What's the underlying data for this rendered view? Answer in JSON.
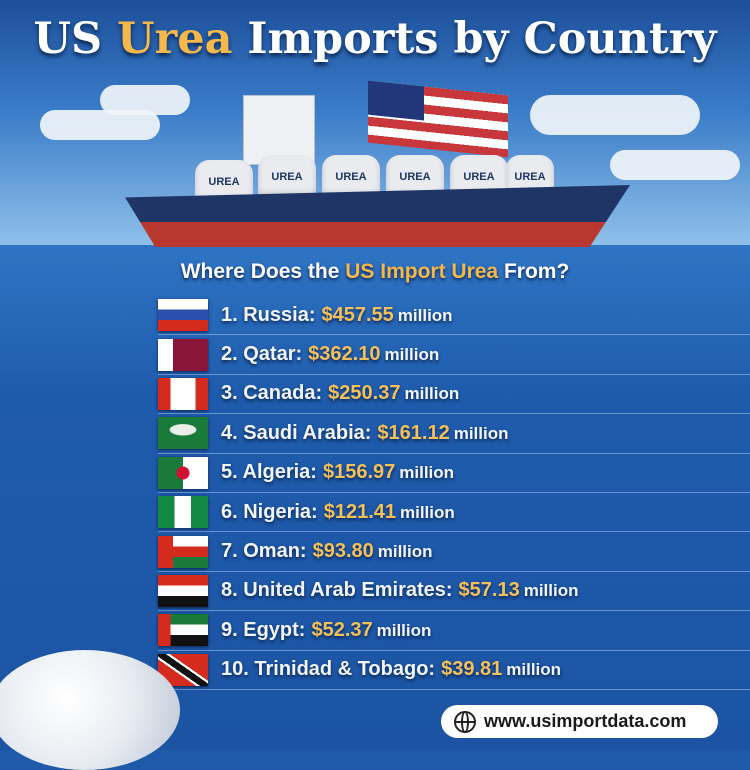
{
  "title": {
    "part1": "US ",
    "highlight": "Urea",
    "part2": " Imports by Country"
  },
  "illustration": {
    "cargo_label": "UREA"
  },
  "subtitle": {
    "part1": "Where Does the ",
    "highlight": "US Import Urea",
    "part2": " From?"
  },
  "colors": {
    "highlight": "#f5b84a",
    "background": "#1f5aa8",
    "text": "#ffffff"
  },
  "rankings": [
    {
      "label": "1. Russia:",
      "amount": "$457.55",
      "unit": "million",
      "flag": "russia"
    },
    {
      "label": "2. Qatar:",
      "amount": "$362.10",
      "unit": "million",
      "flag": "qatar"
    },
    {
      "label": "3. Canada:",
      "amount": "$250.37",
      "unit": "million",
      "flag": "canada"
    },
    {
      "label": "4. Saudi Arabia:",
      "amount": "$161.12",
      "unit": "million",
      "flag": "saudi-arabia"
    },
    {
      "label": "5. Algeria:",
      "amount": "$156.97",
      "unit": "million",
      "flag": "algeria"
    },
    {
      "label": "6. Nigeria:",
      "amount": "$121.41",
      "unit": "million",
      "flag": "nigeria"
    },
    {
      "label": "7. Oman:",
      "amount": "$93.80",
      "unit": "million",
      "flag": "oman"
    },
    {
      "label": "8. United Arab Emirates:",
      "amount": "$57.13",
      "unit": "million",
      "flag": "uae"
    },
    {
      "label": "9. Egypt:",
      "amount": "$52.37",
      "unit": "million",
      "flag": "egypt"
    },
    {
      "label": "10. Trinidad & Tobago:",
      "amount": "$39.81",
      "unit": "million",
      "flag": "trinidad-tobago"
    }
  ],
  "footer": {
    "url": "www.usimportdata.com",
    "icon": "globe-icon"
  }
}
